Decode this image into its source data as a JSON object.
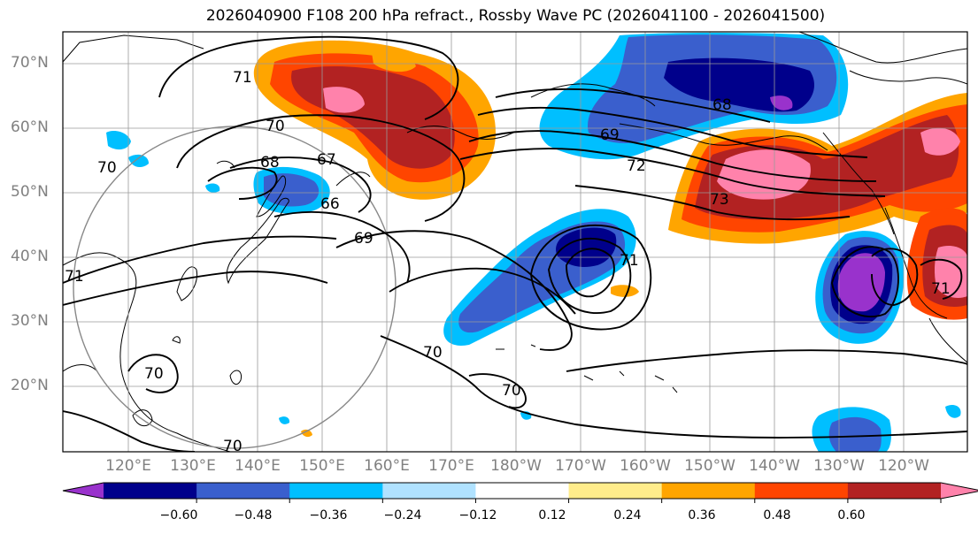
{
  "title": "2026040900 F108 200 hPa refract., Rossby Wave PC (2026041100 - 2026041500)",
  "lat_labels": [
    "70°N",
    "60°N",
    "50°N",
    "40°N",
    "30°N",
    "20°N"
  ],
  "lon_labels": [
    "120°E",
    "130°E",
    "140°E",
    "150°E",
    "160°E",
    "170°E",
    "180°W",
    "170°W",
    "160°W",
    "150°W",
    "140°W",
    "130°W",
    "120°W"
  ],
  "colorbar": {
    "ticks": [
      "−0.60",
      "−0.48",
      "−0.36",
      "−0.24",
      "−0.12",
      "0.12",
      "0.24",
      "0.36",
      "0.48",
      "0.60"
    ],
    "colors": [
      "#9932CC",
      "#00008B",
      "#3A5FCD",
      "#00BFFF",
      "#B0E2FF",
      "#FFFFFF",
      "#FFEC8B",
      "#FFA500",
      "#FF4500",
      "#B22222",
      "#FF82AB"
    ]
  },
  "contour_labels": [
    "71",
    "70",
    "67",
    "68",
    "66",
    "69",
    "70",
    "70",
    "70",
    "71",
    "70",
    "68",
    "69",
    "73",
    "71",
    "71",
    "72",
    "70"
  ]
}
